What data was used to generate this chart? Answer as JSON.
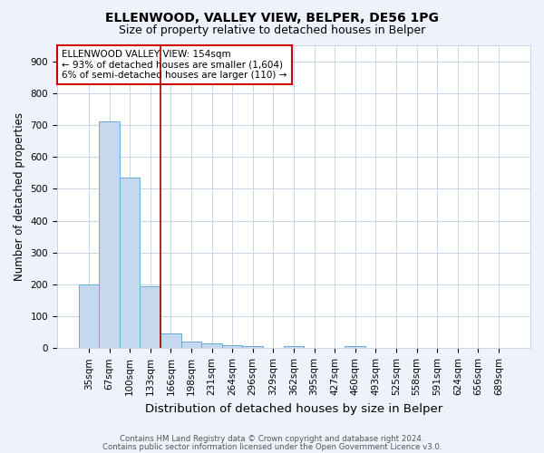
{
  "title1": "ELLENWOOD, VALLEY VIEW, BELPER, DE56 1PG",
  "title2": "Size of property relative to detached houses in Belper",
  "xlabel": "Distribution of detached houses by size in Belper",
  "ylabel": "Number of detached properties",
  "categories": [
    "35sqm",
    "67sqm",
    "100sqm",
    "133sqm",
    "166sqm",
    "198sqm",
    "231sqm",
    "264sqm",
    "296sqm",
    "329sqm",
    "362sqm",
    "395sqm",
    "427sqm",
    "460sqm",
    "493sqm",
    "525sqm",
    "558sqm",
    "591sqm",
    "624sqm",
    "656sqm",
    "689sqm"
  ],
  "values": [
    200,
    710,
    535,
    195,
    45,
    20,
    15,
    10,
    8,
    0,
    8,
    0,
    0,
    8,
    0,
    0,
    0,
    0,
    0,
    0,
    0
  ],
  "bar_color": "#c5d8ee",
  "bar_edge_color": "#6aaad4",
  "annotation_text": "ELLENWOOD VALLEY VIEW: 154sqm\n← 93% of detached houses are smaller (1,604)\n6% of semi-detached houses are larger (110) →",
  "vline_x": 3.5,
  "vline_color": "#aa0000",
  "ylim": [
    0,
    950
  ],
  "yticks": [
    0,
    100,
    200,
    300,
    400,
    500,
    600,
    700,
    800,
    900
  ],
  "footer1": "Contains HM Land Registry data © Crown copyright and database right 2024.",
  "footer2": "Contains public sector information licensed under the Open Government Licence v3.0.",
  "bg_color": "#eef2fb",
  "plot_bg_color": "#ffffff",
  "title_fontsize": 10,
  "subtitle_fontsize": 9,
  "xlabel_fontsize": 9.5,
  "ylabel_fontsize": 8.5,
  "tick_fontsize": 7.5,
  "footer_fontsize": 6.2,
  "annotation_fontsize": 7.5
}
